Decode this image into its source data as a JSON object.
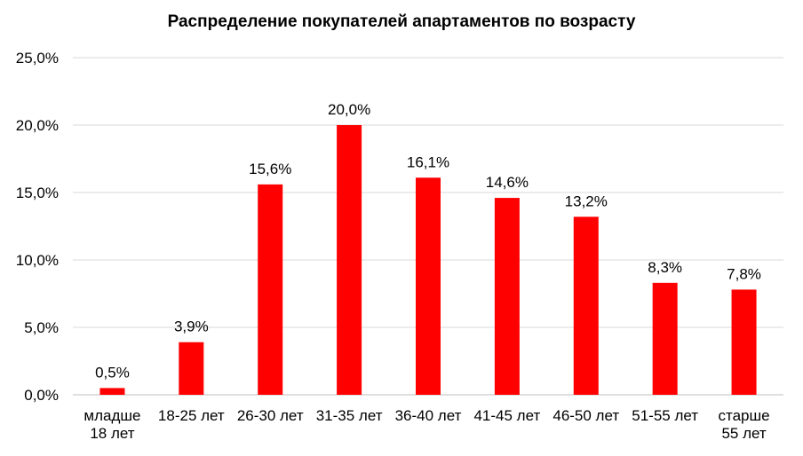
{
  "chart_data": {
    "type": "bar",
    "title": "Распределение покупателей апартаментов по возрасту",
    "categories": [
      [
        "младше",
        "18 лет"
      ],
      [
        "18-25 лет"
      ],
      [
        "26-30 лет"
      ],
      [
        "31-35 лет"
      ],
      [
        "36-40 лет"
      ],
      [
        "41-45 лет"
      ],
      [
        "46-50 лет"
      ],
      [
        "51-55 лет"
      ],
      [
        "старше",
        "55 лет"
      ]
    ],
    "values": [
      0.5,
      3.9,
      15.6,
      20.0,
      16.1,
      14.6,
      13.2,
      8.3,
      7.8
    ],
    "data_labels": [
      "0,5%",
      "3,9%",
      "15,6%",
      "20,0%",
      "16,1%",
      "14,6%",
      "13,2%",
      "8,3%",
      "7,8%"
    ],
    "y_ticks": [
      "0,0%",
      "5,0%",
      "10,0%",
      "15,0%",
      "20,0%",
      "25,0%"
    ],
    "ylim": [
      0,
      25
    ],
    "grid": true,
    "bar_color": "#ff0000",
    "grid_color": "#d9d9d9"
  }
}
